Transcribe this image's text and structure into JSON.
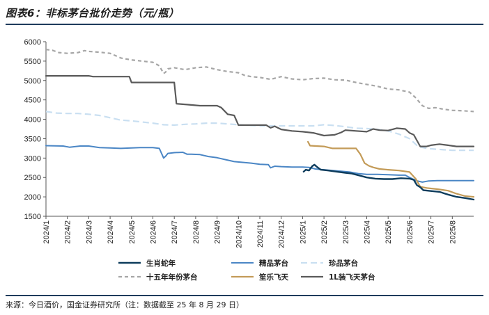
{
  "title": "图表6：非标茅台批价走势（元/瓶）",
  "source": "来源：今日酒价，国金证券研究所（注：数据截至 25 年 8 月 29 日）",
  "chart_data": {
    "type": "line",
    "ylim": [
      1500,
      6000
    ],
    "yticks": [
      1500,
      2000,
      2500,
      3000,
      3500,
      4000,
      4500,
      5000,
      5500,
      6000
    ],
    "xlim": [
      0,
      20
    ],
    "categories": [
      "2024/1",
      "2024/2",
      "2024/3",
      "2024/4",
      "2024/5",
      "2024/6",
      "2024/7",
      "2024/8",
      "2024/9",
      "2024/10",
      "2024/11",
      "2024/12",
      "2025/1",
      "2025/2",
      "2025/3",
      "2025/4",
      "2025/5",
      "2025/6",
      "2025/7",
      "2025/8"
    ],
    "series": [
      {
        "name": "生肖蛇年",
        "color": "#0d3c5c",
        "width": 2.4,
        "dash": "",
        "points": [
          [
            12.05,
            2650
          ],
          [
            12.15,
            2700
          ],
          [
            12.3,
            2680
          ],
          [
            12.45,
            2790
          ],
          [
            12.55,
            2830
          ],
          [
            12.7,
            2760
          ],
          [
            12.85,
            2700
          ],
          [
            13.2,
            2680
          ],
          [
            13.6,
            2650
          ],
          [
            14.0,
            2620
          ],
          [
            14.3,
            2600
          ],
          [
            14.6,
            2560
          ],
          [
            15.0,
            2500
          ],
          [
            15.4,
            2470
          ],
          [
            15.8,
            2460
          ],
          [
            16.2,
            2460
          ],
          [
            16.6,
            2480
          ],
          [
            17.0,
            2470
          ],
          [
            17.2,
            2440
          ],
          [
            17.35,
            2300
          ],
          [
            17.5,
            2250
          ],
          [
            17.65,
            2170
          ],
          [
            18.0,
            2150
          ],
          [
            18.4,
            2130
          ],
          [
            18.8,
            2060
          ],
          [
            19.2,
            2000
          ],
          [
            19.6,
            1970
          ],
          [
            20.0,
            1930
          ]
        ]
      },
      {
        "name": "精品茅台",
        "color": "#4a86c5",
        "width": 2,
        "dash": "",
        "points": [
          [
            0,
            3320
          ],
          [
            0.8,
            3310
          ],
          [
            1.1,
            3280
          ],
          [
            1.6,
            3310
          ],
          [
            2.0,
            3310
          ],
          [
            2.5,
            3270
          ],
          [
            3.0,
            3260
          ],
          [
            3.5,
            3250
          ],
          [
            4.0,
            3260
          ],
          [
            4.4,
            3270
          ],
          [
            5.0,
            3270
          ],
          [
            5.3,
            3250
          ],
          [
            5.5,
            3000
          ],
          [
            5.6,
            3050
          ],
          [
            5.7,
            3120
          ],
          [
            6.0,
            3140
          ],
          [
            6.4,
            3150
          ],
          [
            6.6,
            3100
          ],
          [
            6.8,
            3100
          ],
          [
            7.2,
            3090
          ],
          [
            7.6,
            3040
          ],
          [
            8.0,
            3010
          ],
          [
            8.4,
            2960
          ],
          [
            8.8,
            2910
          ],
          [
            9.2,
            2890
          ],
          [
            9.6,
            2870
          ],
          [
            10.0,
            2840
          ],
          [
            10.4,
            2830
          ],
          [
            10.5,
            2750
          ],
          [
            10.7,
            2790
          ],
          [
            11.0,
            2780
          ],
          [
            11.5,
            2770
          ],
          [
            12.0,
            2770
          ],
          [
            12.3,
            2760
          ],
          [
            12.6,
            2720
          ],
          [
            13.0,
            2700
          ],
          [
            13.4,
            2680
          ],
          [
            13.8,
            2660
          ],
          [
            14.2,
            2640
          ],
          [
            14.6,
            2600
          ],
          [
            15.0,
            2580
          ],
          [
            15.5,
            2580
          ],
          [
            16.0,
            2570
          ],
          [
            16.5,
            2560
          ],
          [
            16.8,
            2560
          ],
          [
            17.0,
            2500
          ],
          [
            17.3,
            2420
          ],
          [
            17.6,
            2380
          ],
          [
            17.9,
            2410
          ],
          [
            18.3,
            2420
          ],
          [
            19.0,
            2420
          ],
          [
            20.0,
            2420
          ]
        ]
      },
      {
        "name": "珍品茅台",
        "color": "#c9dff1",
        "width": 2.2,
        "dash": "9,5",
        "points": [
          [
            0,
            4200
          ],
          [
            0.5,
            4160
          ],
          [
            1.0,
            4150
          ],
          [
            1.5,
            4150
          ],
          [
            2.0,
            4130
          ],
          [
            2.5,
            4100
          ],
          [
            3.0,
            4040
          ],
          [
            3.5,
            3980
          ],
          [
            4.0,
            3960
          ],
          [
            4.5,
            3930
          ],
          [
            5.0,
            3900
          ],
          [
            5.5,
            3860
          ],
          [
            6.0,
            3850
          ],
          [
            6.5,
            3870
          ],
          [
            7.0,
            3880
          ],
          [
            7.5,
            3900
          ],
          [
            8.0,
            3900
          ],
          [
            8.5,
            3880
          ],
          [
            9.0,
            3860
          ],
          [
            9.5,
            3840
          ],
          [
            10.0,
            3830
          ],
          [
            10.5,
            3830
          ],
          [
            11.0,
            3830
          ],
          [
            11.5,
            3830
          ],
          [
            12.0,
            3830
          ],
          [
            12.5,
            3830
          ],
          [
            13.0,
            3860
          ],
          [
            13.5,
            3840
          ],
          [
            14.0,
            3810
          ],
          [
            14.5,
            3770
          ],
          [
            15.0,
            3760
          ],
          [
            15.5,
            3740
          ],
          [
            16.0,
            3700
          ],
          [
            16.5,
            3620
          ],
          [
            17.0,
            3500
          ],
          [
            17.4,
            3300
          ],
          [
            17.8,
            3250
          ],
          [
            18.2,
            3230
          ],
          [
            19.0,
            3200
          ],
          [
            20.0,
            3200
          ]
        ]
      },
      {
        "name": "十五年年份茅台",
        "color": "#a6a6a6",
        "width": 2.2,
        "dash": "5,4",
        "points": [
          [
            0,
            5800
          ],
          [
            0.3,
            5780
          ],
          [
            0.6,
            5720
          ],
          [
            1.0,
            5700
          ],
          [
            1.5,
            5720
          ],
          [
            1.8,
            5770
          ],
          [
            2.0,
            5750
          ],
          [
            2.5,
            5730
          ],
          [
            3.0,
            5700
          ],
          [
            3.5,
            5580
          ],
          [
            4.0,
            5530
          ],
          [
            4.5,
            5500
          ],
          [
            5.0,
            5470
          ],
          [
            5.3,
            5380
          ],
          [
            5.5,
            5180
          ],
          [
            5.6,
            5220
          ],
          [
            5.7,
            5300
          ],
          [
            6.0,
            5330
          ],
          [
            6.5,
            5280
          ],
          [
            7.0,
            5330
          ],
          [
            7.5,
            5350
          ],
          [
            8.0,
            5280
          ],
          [
            8.5,
            5230
          ],
          [
            9.0,
            5200
          ],
          [
            9.3,
            5130
          ],
          [
            9.6,
            5100
          ],
          [
            10.0,
            5080
          ],
          [
            10.3,
            5050
          ],
          [
            10.5,
            5030
          ],
          [
            11.0,
            5100
          ],
          [
            11.5,
            5040
          ],
          [
            12.0,
            5020
          ],
          [
            12.5,
            5050
          ],
          [
            13.0,
            5060
          ],
          [
            13.5,
            5020
          ],
          [
            14.0,
            5010
          ],
          [
            14.5,
            4950
          ],
          [
            15.0,
            4900
          ],
          [
            15.5,
            4850
          ],
          [
            16.0,
            4780
          ],
          [
            16.5,
            4760
          ],
          [
            17.0,
            4700
          ],
          [
            17.3,
            4550
          ],
          [
            17.6,
            4350
          ],
          [
            17.9,
            4280
          ],
          [
            18.2,
            4300
          ],
          [
            18.6,
            4260
          ],
          [
            19.0,
            4230
          ],
          [
            19.5,
            4220
          ],
          [
            20.0,
            4200
          ]
        ]
      },
      {
        "name": "笙乐飞天",
        "color": "#c39b58",
        "width": 2.2,
        "dash": "",
        "points": [
          [
            12.25,
            3420
          ],
          [
            12.35,
            3320
          ],
          [
            13.0,
            3300
          ],
          [
            13.4,
            3250
          ],
          [
            14.0,
            3250
          ],
          [
            14.5,
            3250
          ],
          [
            14.7,
            3100
          ],
          [
            14.9,
            2870
          ],
          [
            15.1,
            2800
          ],
          [
            15.3,
            2760
          ],
          [
            15.6,
            2720
          ],
          [
            16.0,
            2700
          ],
          [
            16.5,
            2680
          ],
          [
            17.0,
            2640
          ],
          [
            17.3,
            2460
          ],
          [
            17.5,
            2260
          ],
          [
            17.8,
            2230
          ],
          [
            18.3,
            2200
          ],
          [
            18.8,
            2160
          ],
          [
            19.2,
            2080
          ],
          [
            19.6,
            2020
          ],
          [
            20.0,
            2000
          ]
        ]
      },
      {
        "name": "1L装飞天茅台",
        "color": "#5a5a5a",
        "width": 2.2,
        "dash": "",
        "points": [
          [
            0,
            5120
          ],
          [
            0.5,
            5120
          ],
          [
            1.0,
            5120
          ],
          [
            2.0,
            5120
          ],
          [
            2.2,
            5100
          ],
          [
            3.0,
            5100
          ],
          [
            3.5,
            5100
          ],
          [
            3.9,
            5100
          ],
          [
            4.0,
            4950
          ],
          [
            5.0,
            4950
          ],
          [
            6.0,
            4950
          ],
          [
            6.1,
            4400
          ],
          [
            6.6,
            4380
          ],
          [
            7.2,
            4350
          ],
          [
            8.0,
            4350
          ],
          [
            8.2,
            4300
          ],
          [
            8.5,
            4130
          ],
          [
            8.8,
            4100
          ],
          [
            9.0,
            3850
          ],
          [
            10.0,
            3850
          ],
          [
            10.3,
            3850
          ],
          [
            10.5,
            3780
          ],
          [
            10.7,
            3820
          ],
          [
            11.0,
            3740
          ],
          [
            11.5,
            3700
          ],
          [
            12.0,
            3680
          ],
          [
            12.5,
            3650
          ],
          [
            13.0,
            3580
          ],
          [
            13.5,
            3600
          ],
          [
            13.8,
            3660
          ],
          [
            14.0,
            3720
          ],
          [
            14.5,
            3700
          ],
          [
            15.0,
            3680
          ],
          [
            15.3,
            3750
          ],
          [
            15.6,
            3720
          ],
          [
            16.0,
            3710
          ],
          [
            16.4,
            3770
          ],
          [
            16.8,
            3750
          ],
          [
            17.0,
            3650
          ],
          [
            17.2,
            3600
          ],
          [
            17.5,
            3300
          ],
          [
            17.8,
            3300
          ],
          [
            18.0,
            3330
          ],
          [
            18.4,
            3360
          ],
          [
            18.8,
            3330
          ],
          [
            19.2,
            3300
          ],
          [
            20.0,
            3300
          ]
        ]
      }
    ]
  }
}
